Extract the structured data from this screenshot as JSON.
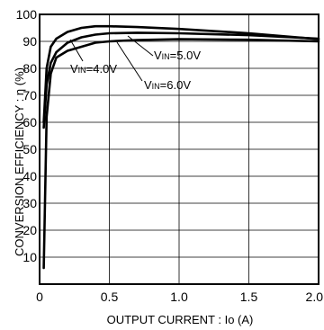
{
  "chart_data": {
    "type": "line",
    "title": "",
    "xlabel": "OUTPUT CURRENT : Io (A)",
    "ylabel": "CONVERSION EFFICIENCY : η (%)",
    "xlim": [
      0,
      2.0
    ],
    "ylim": [
      0,
      100
    ],
    "x_ticks": [
      "0",
      "0.5",
      "1.0",
      "1.5",
      "2.0"
    ],
    "x_tick_values": [
      0,
      0.5,
      1.0,
      1.5,
      2.0
    ],
    "y_ticks": [
      "10",
      "20",
      "30",
      "40",
      "50",
      "60",
      "70",
      "80",
      "90",
      "100"
    ],
    "y_tick_values": [
      10,
      20,
      30,
      40,
      50,
      60,
      70,
      80,
      90,
      100
    ],
    "grid": true,
    "legend": "none",
    "series": [
      {
        "label": {
          "prefix": "V",
          "sub": "IN",
          "suffix": "=4.0V"
        },
        "x": [
          0.03,
          0.05,
          0.08,
          0.12,
          0.2,
          0.3,
          0.4,
          0.5,
          0.7,
          1.0,
          1.5,
          2.0
        ],
        "y": [
          60,
          80,
          88,
          91,
          93.5,
          95,
          95.6,
          95.6,
          95.3,
          94.6,
          93,
          90.8
        ]
      },
      {
        "label": {
          "prefix": "V",
          "sub": "IN",
          "suffix": "=5.0V"
        },
        "x": [
          0.03,
          0.05,
          0.08,
          0.12,
          0.2,
          0.3,
          0.4,
          0.5,
          0.7,
          1.0,
          1.5,
          2.0
        ],
        "y": [
          58,
          74,
          82,
          86,
          89.5,
          91.5,
          92.5,
          93,
          93.2,
          93,
          92.3,
          91
        ]
      },
      {
        "label": {
          "prefix": "V",
          "sub": "IN",
          "suffix": "=6.0V"
        },
        "x": [
          0.03,
          0.05,
          0.08,
          0.12,
          0.2,
          0.3,
          0.4,
          0.5,
          0.7,
          1.0,
          1.5,
          2.0
        ],
        "y": [
          6,
          62,
          78,
          84,
          86.5,
          88,
          89.5,
          90,
          90.5,
          90.8,
          90.6,
          90
        ]
      }
    ]
  }
}
